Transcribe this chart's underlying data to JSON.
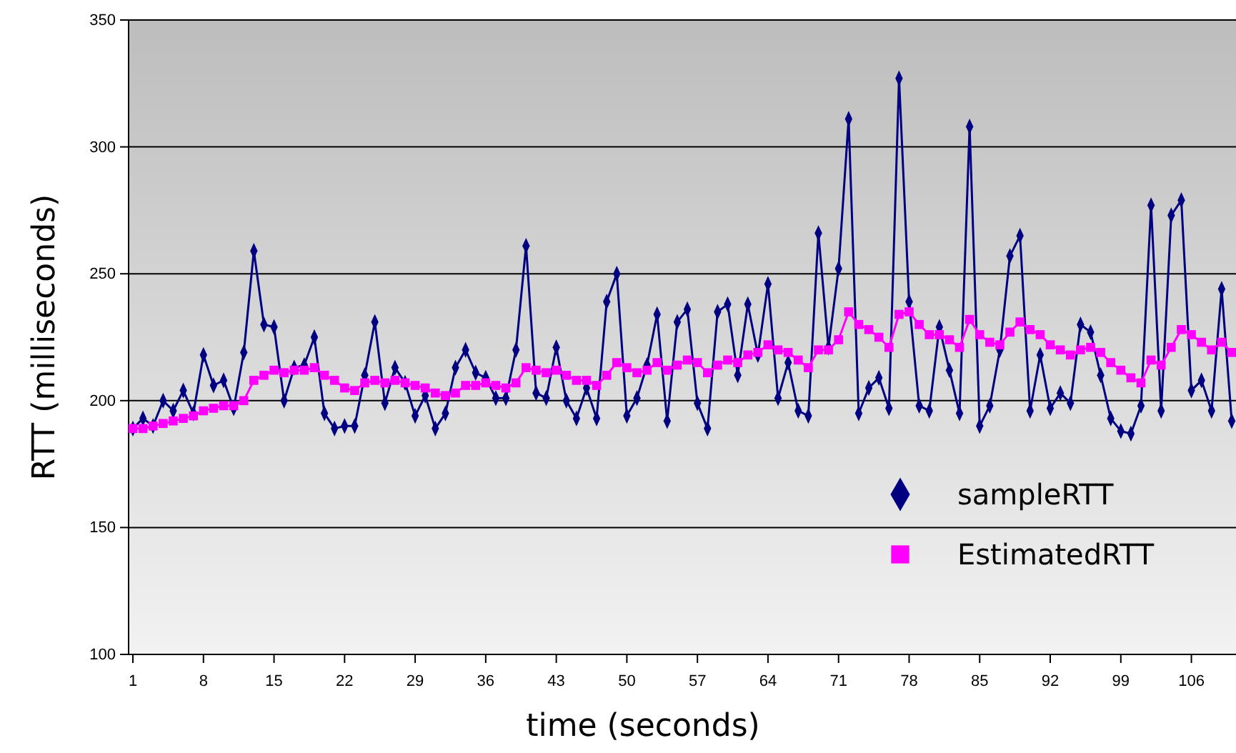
{
  "chart_data": {
    "type": "line",
    "xlabel": "time (seconds)",
    "ylabel": "RTT (milliseconds)",
    "categories": [
      "1",
      null,
      null,
      null,
      null,
      null,
      null,
      "8",
      null,
      null,
      null,
      null,
      null,
      null,
      "15",
      null,
      null,
      null,
      null,
      null,
      null,
      "22",
      null,
      null,
      null,
      null,
      null,
      null,
      "29",
      null,
      null,
      null,
      null,
      null,
      null,
      "36",
      null,
      null,
      null,
      null,
      null,
      null,
      "43",
      null,
      null,
      null,
      null,
      null,
      null,
      "50",
      null,
      null,
      null,
      null,
      null,
      null,
      "57",
      null,
      null,
      null,
      null,
      null,
      null,
      "64",
      null,
      null,
      null,
      null,
      null,
      null,
      "71",
      null,
      null,
      null,
      null,
      null,
      null,
      "78",
      null,
      null,
      null,
      null,
      null,
      null,
      "85",
      null,
      null,
      null,
      null,
      null,
      null,
      "92",
      null,
      null,
      null,
      null,
      null,
      null,
      "99",
      null,
      null,
      null,
      null,
      null,
      null,
      "106",
      null,
      null,
      null,
      null
    ],
    "series": [
      {
        "name": "sampleRTT",
        "color": "#000080",
        "marker": "diamond",
        "values": [
          189,
          193,
          190,
          200,
          196,
          204,
          195,
          218,
          206,
          208,
          197,
          219,
          259,
          230,
          229,
          200,
          213,
          214,
          225,
          195,
          189,
          190,
          190,
          210,
          231,
          199,
          213,
          207,
          194,
          202,
          189,
          195,
          213,
          220,
          211,
          209,
          201,
          201,
          220,
          261,
          203,
          201,
          221,
          200,
          193,
          205,
          193,
          239,
          250,
          194,
          201,
          214,
          234,
          192,
          231,
          236,
          199,
          189,
          235,
          238,
          210,
          238,
          218,
          246,
          201,
          215,
          196,
          194,
          266,
          221,
          252,
          311,
          195,
          205,
          209,
          197,
          327,
          239,
          198,
          196,
          229,
          212,
          195,
          308,
          190,
          198,
          220,
          257,
          265,
          196,
          218,
          197,
          203,
          199,
          230,
          227,
          210,
          193,
          188,
          187,
          198,
          277,
          196,
          273,
          279,
          204,
          208,
          196,
          244,
          192
        ]
      },
      {
        "name": "EstimatedRTT",
        "color": "#ff00ff",
        "marker": "square",
        "values": [
          189,
          189,
          190,
          191,
          192,
          193,
          194,
          196,
          197,
          198,
          198,
          200,
          208,
          210,
          212,
          211,
          212,
          212,
          213,
          210,
          208,
          205,
          204,
          207,
          208,
          207,
          208,
          207,
          206,
          205,
          203,
          202,
          203,
          206,
          206,
          207,
          206,
          205,
          207,
          213,
          212,
          211,
          212,
          210,
          208,
          208,
          206,
          210,
          215,
          213,
          211,
          212,
          215,
          212,
          214,
          216,
          215,
          211,
          214,
          216,
          215,
          218,
          219,
          222,
          220,
          219,
          216,
          213,
          220,
          220,
          224,
          235,
          230,
          228,
          225,
          221,
          234,
          235,
          230,
          226,
          226,
          224,
          221,
          232,
          226,
          223,
          222,
          227,
          231,
          228,
          226,
          222,
          220,
          218,
          220,
          221,
          219,
          215,
          212,
          209,
          207,
          216,
          214,
          221,
          228,
          226,
          223,
          220,
          223,
          219
        ]
      }
    ],
    "ylim": [
      100,
      350
    ],
    "yticks": [
      100,
      150,
      200,
      250,
      300,
      350
    ],
    "grid": "y",
    "legend": "bottom right"
  }
}
